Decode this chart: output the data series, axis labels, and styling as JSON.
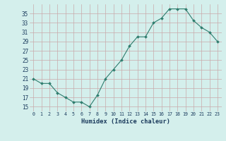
{
  "x": [
    0,
    1,
    2,
    3,
    4,
    5,
    6,
    7,
    8,
    9,
    10,
    11,
    12,
    13,
    14,
    15,
    16,
    17,
    18,
    19,
    20,
    21,
    22,
    23
  ],
  "y": [
    21,
    20,
    20,
    18,
    17,
    16,
    16,
    15,
    17.5,
    21,
    23,
    25,
    28,
    30,
    30,
    33,
    34,
    36,
    36,
    36,
    33.5,
    32,
    31,
    29
  ],
  "line_color": "#2e7d6e",
  "marker_color": "#2e7d6e",
  "bg_color": "#d4efec",
  "grid_color": "#c9aaaa",
  "xlabel": "Humidex (Indice chaleur)",
  "xlabel_color": "#1a3a5c",
  "tick_label_color": "#1a3a5c",
  "ylim": [
    14,
    37
  ],
  "yticks": [
    15,
    17,
    19,
    21,
    23,
    25,
    27,
    29,
    31,
    33,
    35
  ],
  "xticks": [
    0,
    1,
    2,
    3,
    4,
    5,
    6,
    7,
    8,
    9,
    10,
    11,
    12,
    13,
    14,
    15,
    16,
    17,
    18,
    19,
    20,
    21,
    22,
    23
  ],
  "xtick_labels": [
    "0",
    "1",
    "2",
    "3",
    "4",
    "5",
    "6",
    "7",
    "8",
    "9",
    "10",
    "11",
    "12",
    "13",
    "14",
    "15",
    "16",
    "17",
    "18",
    "19",
    "20",
    "21",
    "22",
    "23"
  ]
}
